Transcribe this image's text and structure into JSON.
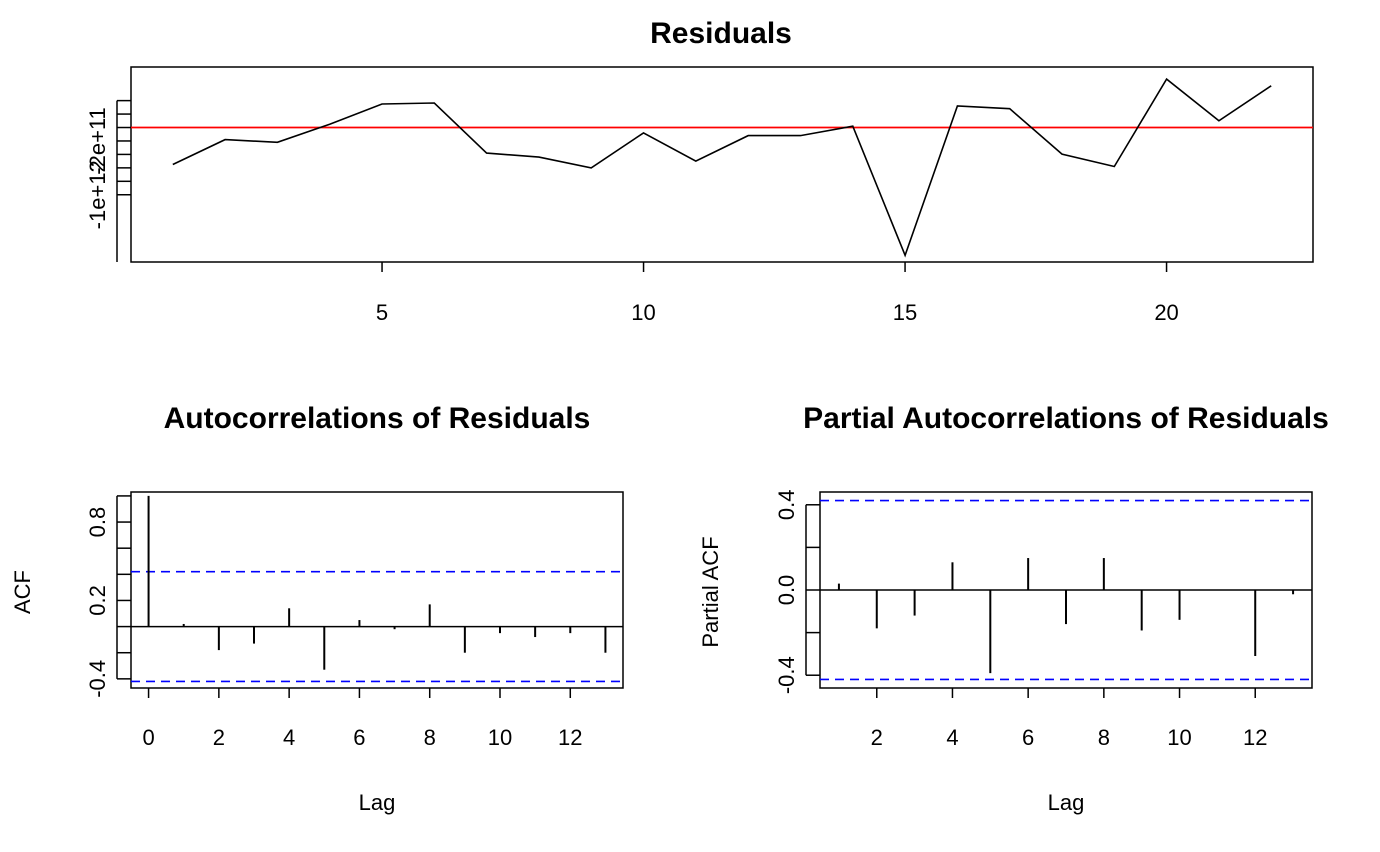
{
  "colors": {
    "background": "#ffffff",
    "series": "#000000",
    "zero_line": "#ff0000",
    "confidence_band": "#0000ff"
  },
  "chart_data": [
    {
      "id": "residuals",
      "type": "line",
      "title": "Residuals",
      "xlabel": "",
      "ylabel": "",
      "x_ticks": [
        "5",
        "10",
        "15",
        "20"
      ],
      "y_tick_labels": [
        {
          "value": -1000000000000,
          "label": "-1e+12"
        },
        {
          "value": -200000000000,
          "label": "-2e+11"
        }
      ],
      "x": [
        1,
        2,
        3,
        4,
        5,
        6,
        7,
        8,
        9,
        10,
        11,
        12,
        13,
        14,
        15,
        16,
        17,
        18,
        19,
        20,
        21,
        22
      ],
      "y": [
        -550000000000,
        -180000000000,
        -220000000000,
        50000000000,
        350000000000,
        365000000000,
        -380000000000,
        -440000000000,
        -600000000000,
        -80000000000,
        -500000000000,
        -120000000000,
        -120000000000,
        20000000000,
        -1900000000000,
        320000000000,
        280000000000,
        -395000000000,
        -580000000000,
        720000000000,
        100000000000,
        620000000000
      ],
      "reference_line": 0,
      "xlim": [
        0.2,
        22.8
      ],
      "ylim": [
        -2000000000000,
        900000000000
      ]
    },
    {
      "id": "acf",
      "type": "bar",
      "title": "Autocorrelations of Residuals",
      "xlabel": "Lag",
      "ylabel": "ACF",
      "x_ticks": [
        "0",
        "2",
        "4",
        "6",
        "8",
        "10",
        "12"
      ],
      "y_ticks": [
        "-0.4",
        "0.2",
        "0.8"
      ],
      "lags": [
        0,
        1,
        2,
        3,
        4,
        5,
        6,
        7,
        8,
        9,
        10,
        11,
        12,
        13
      ],
      "values": [
        1.0,
        0.02,
        -0.18,
        -0.13,
        0.14,
        -0.33,
        0.05,
        -0.02,
        0.17,
        -0.2,
        -0.05,
        -0.08,
        -0.05,
        -0.2
      ],
      "confidence_bound": 0.42,
      "xlim": [
        -0.5,
        13.5
      ],
      "ylim": [
        -0.47,
        1.03
      ]
    },
    {
      "id": "pacf",
      "type": "bar",
      "title": "Partial Autocorrelations of Residuals",
      "xlabel": "Lag",
      "ylabel": "Partial ACF",
      "x_ticks": [
        "2",
        "4",
        "6",
        "8",
        "10",
        "12"
      ],
      "y_ticks": [
        "-0.4",
        "0.0",
        "0.4"
      ],
      "lags": [
        1,
        2,
        3,
        4,
        5,
        6,
        7,
        8,
        9,
        10,
        11,
        12,
        13
      ],
      "values": [
        0.03,
        -0.18,
        -0.12,
        0.13,
        -0.39,
        0.15,
        -0.16,
        0.15,
        -0.19,
        -0.14,
        0.0,
        -0.31,
        -0.02
      ],
      "confidence_bound": 0.42,
      "xlim": [
        0.5,
        13.5
      ],
      "ylim": [
        -0.46,
        0.46
      ]
    }
  ]
}
